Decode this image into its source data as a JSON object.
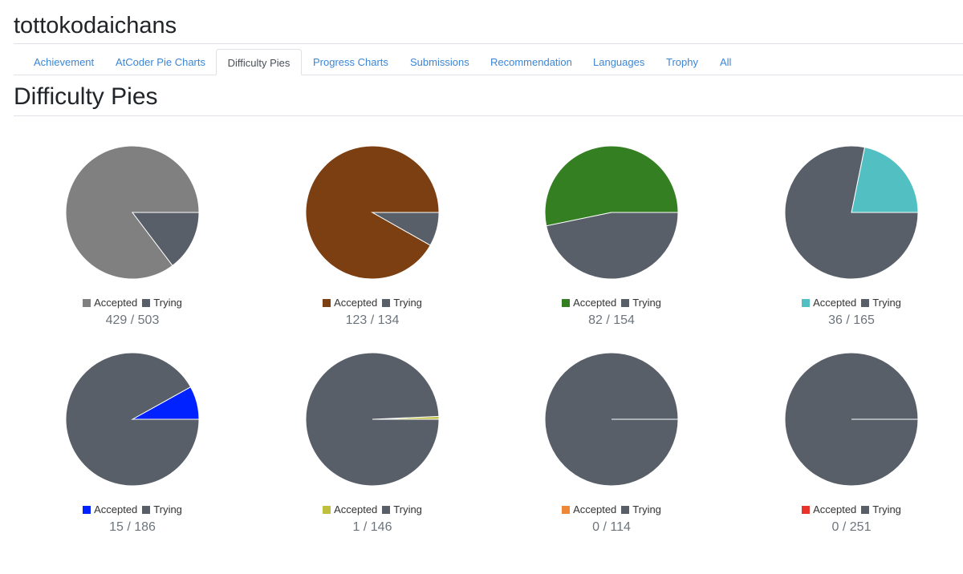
{
  "user": {
    "name": "tottokodaichans"
  },
  "tabs": [
    {
      "label": "Achievement",
      "active": false
    },
    {
      "label": "AtCoder Pie Charts",
      "active": false
    },
    {
      "label": "Difficulty Pies",
      "active": true
    },
    {
      "label": "Progress Charts",
      "active": false
    },
    {
      "label": "Submissions",
      "active": false
    },
    {
      "label": "Recommendation",
      "active": false
    },
    {
      "label": "Languages",
      "active": false
    },
    {
      "label": "Trophy",
      "active": false
    },
    {
      "label": "All",
      "active": false
    }
  ],
  "section": {
    "title": "Difficulty Pies"
  },
  "legend": {
    "accepted": "Accepted",
    "trying": "Trying"
  },
  "colors": {
    "trying": "#585f68",
    "tab_link": "#3b86d6"
  },
  "chart_data": [
    {
      "type": "pie",
      "accepted": 429,
      "total": 503,
      "label": "429 / 503",
      "accepted_color": "#808080"
    },
    {
      "type": "pie",
      "accepted": 123,
      "total": 134,
      "label": "123 / 134",
      "accepted_color": "#7b3f12"
    },
    {
      "type": "pie",
      "accepted": 82,
      "total": 154,
      "label": "82 / 154",
      "accepted_color": "#357f23"
    },
    {
      "type": "pie",
      "accepted": 36,
      "total": 165,
      "label": "36 / 165",
      "accepted_color": "#52bfc2"
    },
    {
      "type": "pie",
      "accepted": 15,
      "total": 186,
      "label": "15 / 186",
      "accepted_color": "#0022ff"
    },
    {
      "type": "pie",
      "accepted": 1,
      "total": 146,
      "label": "1 / 146",
      "accepted_color": "#c0c03e"
    },
    {
      "type": "pie",
      "accepted": 0,
      "total": 114,
      "label": "0 / 114",
      "accepted_color": "#ef8836"
    },
    {
      "type": "pie",
      "accepted": 0,
      "total": 251,
      "label": "0 / 251",
      "accepted_color": "#e8332b"
    }
  ]
}
